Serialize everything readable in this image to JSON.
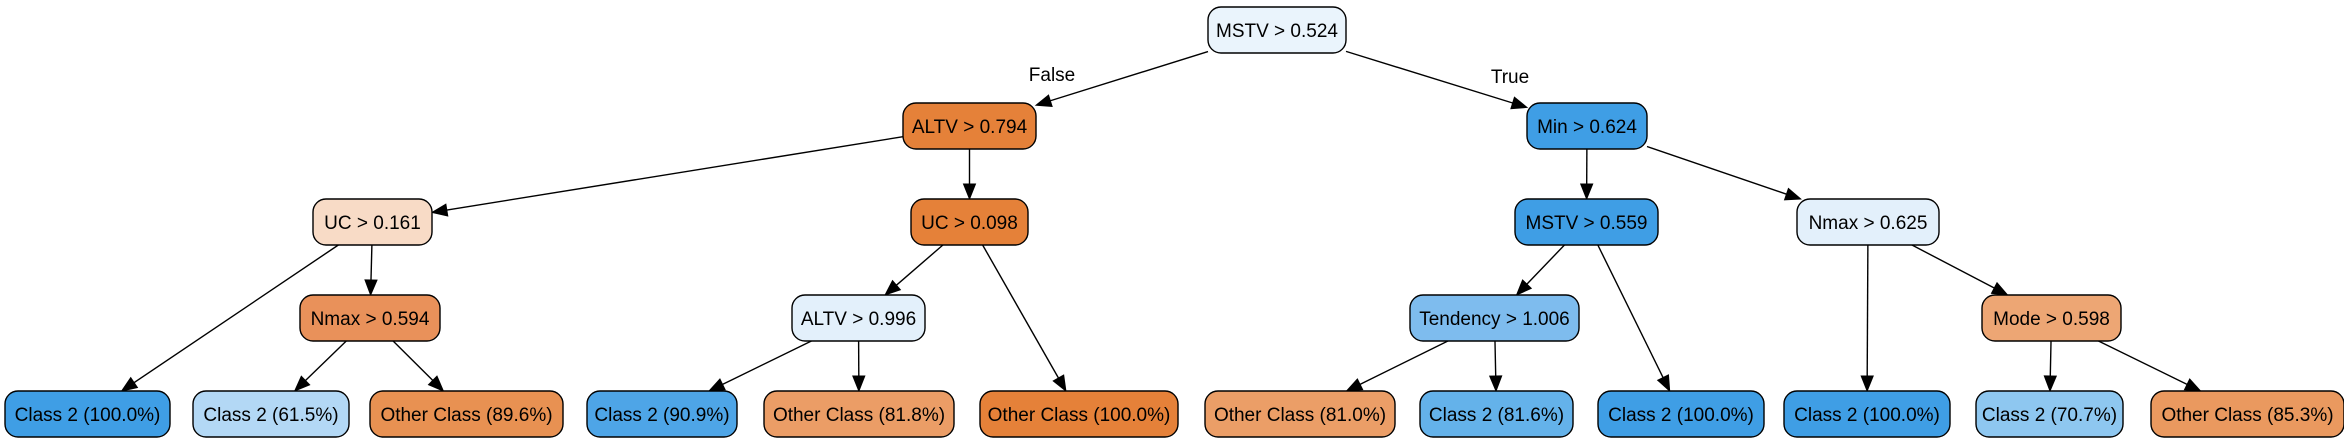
{
  "tree": {
    "edge_labels": {
      "false": "False",
      "true": "True"
    },
    "nodes": [
      {
        "id": "n0",
        "label": "MSTV > 0.524",
        "fill": "#eaf4fc"
      },
      {
        "id": "n1",
        "label": "ALTV > 0.794",
        "fill": "#e58139"
      },
      {
        "id": "n2",
        "label": "Min > 0.624",
        "fill": "#3f9ee5"
      },
      {
        "id": "n3",
        "label": "UC > 0.161",
        "fill": "#f8dbc6"
      },
      {
        "id": "n4",
        "label": "UC > 0.098",
        "fill": "#e58139"
      },
      {
        "id": "n5",
        "label": "MSTV > 0.559",
        "fill": "#3f9ee5"
      },
      {
        "id": "n6",
        "label": "Nmax > 0.625",
        "fill": "#e3f0fb"
      },
      {
        "id": "n7",
        "label": "Nmax > 0.594",
        "fill": "#e9915a"
      },
      {
        "id": "n8",
        "label": "ALTV > 0.996",
        "fill": "#e3f0fb"
      },
      {
        "id": "n9",
        "label": "Tendency > 1.006",
        "fill": "#7ebcee"
      },
      {
        "id": "n10",
        "label": "Mode > 0.598",
        "fill": "#eda674"
      },
      {
        "id": "n11",
        "label": "Class 2 (100.0%)",
        "fill": "#3f9ee5"
      },
      {
        "id": "n12",
        "label": "Class 2 (61.5%)",
        "fill": "#b3d8f5"
      },
      {
        "id": "n13",
        "label": "Other Class (89.6%)",
        "fill": "#e89152"
      },
      {
        "id": "n14",
        "label": "Class 2 (90.9%)",
        "fill": "#4ea5e7"
      },
      {
        "id": "n15",
        "label": "Other Class (81.8%)",
        "fill": "#eb9d66"
      },
      {
        "id": "n16",
        "label": "Other Class (100.0%)",
        "fill": "#e58139"
      },
      {
        "id": "n17",
        "label": "Other Class (81.0%)",
        "fill": "#eb9e67"
      },
      {
        "id": "n18",
        "label": "Class 2 (81.6%)",
        "fill": "#64b2ea"
      },
      {
        "id": "n19",
        "label": "Class 2 (100.0%)",
        "fill": "#3f9ee5"
      },
      {
        "id": "n20",
        "label": "Class 2 (100.0%)",
        "fill": "#3f9ee5"
      },
      {
        "id": "n21",
        "label": "Class 2 (70.7%)",
        "fill": "#8ec7f0"
      },
      {
        "id": "n22",
        "label": "Other Class (85.3%)",
        "fill": "#ea995f"
      }
    ],
    "edges": [
      {
        "from": "n0",
        "to": "n1",
        "label": "false"
      },
      {
        "from": "n0",
        "to": "n2",
        "label": "true"
      },
      {
        "from": "n1",
        "to": "n3"
      },
      {
        "from": "n1",
        "to": "n4"
      },
      {
        "from": "n2",
        "to": "n5"
      },
      {
        "from": "n2",
        "to": "n6"
      },
      {
        "from": "n3",
        "to": "n11"
      },
      {
        "from": "n3",
        "to": "n7"
      },
      {
        "from": "n7",
        "to": "n12"
      },
      {
        "from": "n7",
        "to": "n13"
      },
      {
        "from": "n4",
        "to": "n8"
      },
      {
        "from": "n4",
        "to": "n16"
      },
      {
        "from": "n8",
        "to": "n14"
      },
      {
        "from": "n8",
        "to": "n15"
      },
      {
        "from": "n5",
        "to": "n9"
      },
      {
        "from": "n5",
        "to": "n19"
      },
      {
        "from": "n9",
        "to": "n17"
      },
      {
        "from": "n9",
        "to": "n18"
      },
      {
        "from": "n6",
        "to": "n20"
      },
      {
        "from": "n6",
        "to": "n10"
      },
      {
        "from": "n10",
        "to": "n21"
      },
      {
        "from": "n10",
        "to": "n22"
      }
    ]
  }
}
